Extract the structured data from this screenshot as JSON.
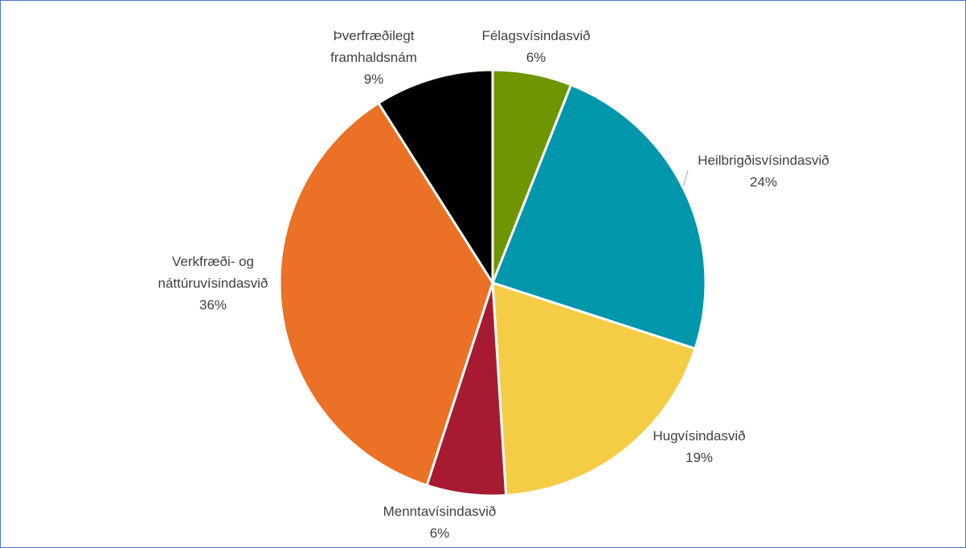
{
  "chart_data": {
    "type": "pie",
    "categories": [
      "Félagsvísindasvið",
      "Heilbrigðisvísindasvið",
      "Hugvísindasvið",
      "Menntavísindasvið",
      "Verkfræði- og náttúruvísindasvið",
      "Þverfræðilegt framhaldsnám"
    ],
    "values": [
      6,
      24,
      19,
      6,
      36,
      9
    ],
    "value_labels": [
      "6%",
      "24%",
      "19%",
      "6%",
      "36%",
      "9%"
    ],
    "colors": [
      "#6f9500",
      "#0097ad",
      "#f4cc46",
      "#a61b31",
      "#ea7126",
      "#000000"
    ]
  }
}
